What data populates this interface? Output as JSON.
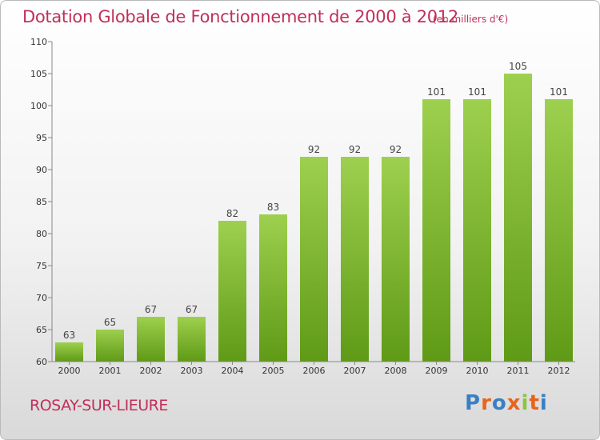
{
  "header": {
    "title": "Dotation Globale de Fonctionnement de 2000 à 2012",
    "subtitle": "(en milliers d'€)"
  },
  "footer": {
    "commune": "ROSAY-SUR-LIEURE",
    "logo": "Proxiti",
    "logo_colors": [
      "#3a7fc4",
      "#e8641b",
      "#3a7fc4",
      "#e8641b",
      "#8cc63f",
      "#e8641b",
      "#3a7fc4"
    ]
  },
  "chart_data": {
    "type": "bar",
    "title": "Dotation Globale de Fonctionnement de 2000 à 2012",
    "subtitle": "(en milliers d'€)",
    "categories": [
      "2000",
      "2001",
      "2002",
      "2003",
      "2004",
      "2005",
      "2006",
      "2007",
      "2008",
      "2009",
      "2010",
      "2011",
      "2012"
    ],
    "values": [
      63,
      65,
      67,
      67,
      82,
      83,
      92,
      92,
      92,
      101,
      101,
      105,
      101
    ],
    "ylim": [
      60,
      110
    ],
    "yticks": [
      60,
      65,
      70,
      75,
      80,
      85,
      90,
      95,
      100,
      105,
      110
    ],
    "grid": false,
    "bar_color_top": "#9dd04e",
    "bar_color_bottom": "#5f9a16"
  }
}
